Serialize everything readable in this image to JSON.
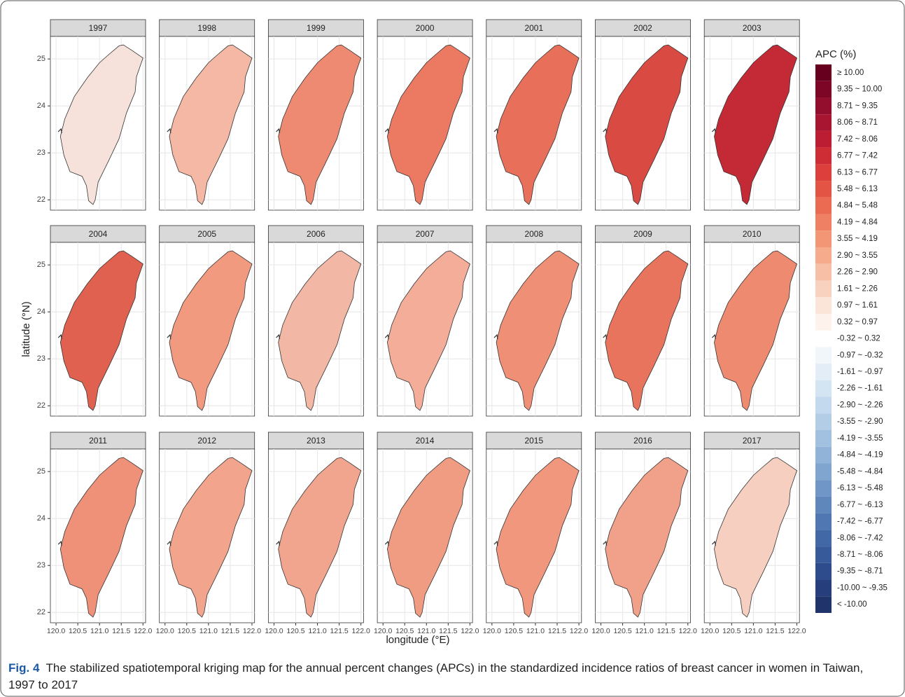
{
  "chart_data": {
    "type": "map",
    "xlabel": "longitude (°E)",
    "ylabel": "latitude (°N)",
    "xlim": [
      119.87,
      122.06
    ],
    "ylim": [
      21.78,
      25.48
    ],
    "xticks": [
      {
        "value": 120,
        "label": "120.0"
      },
      120.5,
      {
        "value": 121,
        "label": "121.0"
      },
      121.5,
      {
        "value": 122,
        "label": "122.0"
      }
    ],
    "yticks": [
      22,
      23,
      24,
      25
    ],
    "grid": true,
    "panels": [
      {
        "title": "1997",
        "color": "#f6e2da"
      },
      {
        "title": "1998",
        "color": "#f4b8a4"
      },
      {
        "title": "1999",
        "color": "#ef8a72"
      },
      {
        "title": "2000",
        "color": "#ec7a62"
      },
      {
        "title": "2001",
        "color": "#e8705a"
      },
      {
        "title": "2002",
        "color": "#d84a42"
      },
      {
        "title": "2003",
        "color": "#c42a36"
      },
      {
        "title": "2004",
        "color": "#e0614f"
      },
      {
        "title": "2005",
        "color": "#f19a80"
      },
      {
        "title": "2006",
        "color": "#f3b8a5"
      },
      {
        "title": "2007",
        "color": "#f3ad98"
      },
      {
        "title": "2008",
        "color": "#ef8f75"
      },
      {
        "title": "2009",
        "color": "#e9745d"
      },
      {
        "title": "2010",
        "color": "#ee8a70"
      },
      {
        "title": "2011",
        "color": "#ef9178"
      },
      {
        "title": "2012",
        "color": "#f2a48c"
      },
      {
        "title": "2013",
        "color": "#f2a58e"
      },
      {
        "title": "2014",
        "color": "#f09c83"
      },
      {
        "title": "2015",
        "color": "#f0977e"
      },
      {
        "title": "2016",
        "color": "#f1a089"
      },
      {
        "title": "2017",
        "color": "#f6cfc0"
      }
    ],
    "legend_position": "right",
    "legend": {
      "title": "APC (%)",
      "items": [
        {
          "label": "≥ 10.00",
          "color": "#67001f"
        },
        {
          "label": "9.35 ~ 10.00",
          "color": "#7d0626"
        },
        {
          "label": "8.71 ~ 9.35",
          "color": "#930d2c"
        },
        {
          "label": "8.06 ~ 8.71",
          "color": "#a81530"
        },
        {
          "label": "7.42 ~ 8.06",
          "color": "#bd1d33"
        },
        {
          "label": "6.77 ~ 7.42",
          "color": "#cf2d36"
        },
        {
          "label": "6.13 ~ 6.77",
          "color": "#dc3f3c"
        },
        {
          "label": "5.48 ~ 6.13",
          "color": "#e45444"
        },
        {
          "label": "4.84 ~ 5.48",
          "color": "#ea6a52"
        },
        {
          "label": "4.19 ~ 4.84",
          "color": "#ef8063"
        },
        {
          "label": "3.55 ~ 4.19",
          "color": "#f29676"
        },
        {
          "label": "2.90 ~ 3.55",
          "color": "#f5ab8c"
        },
        {
          "label": "2.26 ~ 2.90",
          "color": "#f7bfa5"
        },
        {
          "label": "1.61 ~ 2.26",
          "color": "#f9d2bf"
        },
        {
          "label": "0.97 ~ 1.61",
          "color": "#fbe4d8"
        },
        {
          "label": "0.32 ~ 0.97",
          "color": "#fdf2ec"
        },
        {
          "label": "-0.32 ~ 0.32",
          "color": "#ffffff"
        },
        {
          "label": "-0.97 ~ -0.32",
          "color": "#f1f6fb"
        },
        {
          "label": "-1.61 ~ -0.97",
          "color": "#e3edf7"
        },
        {
          "label": "-2.26 ~ -1.61",
          "color": "#d3e4f2"
        },
        {
          "label": "-2.90 ~ -2.26",
          "color": "#c3d9ed"
        },
        {
          "label": "-3.55 ~ -2.90",
          "color": "#b3cde6"
        },
        {
          "label": "-4.19 ~ -3.55",
          "color": "#a2c1e0"
        },
        {
          "label": "-4.84 ~ -4.19",
          "color": "#91b3d8"
        },
        {
          "label": "-5.48 ~ -4.84",
          "color": "#80a5cf"
        },
        {
          "label": "-6.13 ~ -5.48",
          "color": "#6f96c6"
        },
        {
          "label": "-6.77 ~ -6.13",
          "color": "#5f87bc"
        },
        {
          "label": "-7.42 ~ -6.77",
          "color": "#5077b1"
        },
        {
          "label": "-8.06 ~ -7.42",
          "color": "#4268a6"
        },
        {
          "label": "-8.71 ~ -8.06",
          "color": "#375a9a"
        },
        {
          "label": "-9.35 ~ -8.71",
          "color": "#2e4c8c"
        },
        {
          "label": "-10.00 ~ -9.35",
          "color": "#263f7c"
        },
        {
          "label": "< -10.00",
          "color": "#20336b"
        }
      ]
    }
  },
  "caption": {
    "label": "Fig. 4",
    "text": "The stabilized spatiotemporal kriging map for the annual percent changes (APCs) in the standardized incidence ratios of breast cancer in women in Taiwan, 1997 to 2017"
  }
}
